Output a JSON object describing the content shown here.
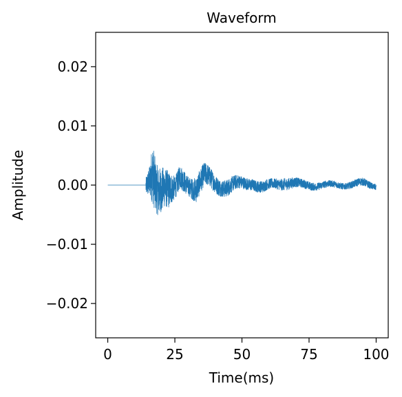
{
  "chart_data": {
    "type": "line",
    "title": "Waveform",
    "xlabel": "Time(ms)",
    "ylabel": "Amplitude",
    "xlim": [
      -4.5,
      104.5
    ],
    "ylim": [
      -0.0258,
      0.0258
    ],
    "xticks": [
      {
        "value": 0,
        "label": "0"
      },
      {
        "value": 25,
        "label": "25"
      },
      {
        "value": 50,
        "label": "50"
      },
      {
        "value": 75,
        "label": "75"
      },
      {
        "value": 100,
        "label": "100"
      }
    ],
    "yticks": [
      {
        "value": 0.02,
        "label": "0.02"
      },
      {
        "value": 0.01,
        "label": "0.01"
      },
      {
        "value": 0.0,
        "label": "0.00"
      },
      {
        "value": -0.01,
        "label": "−0.01"
      },
      {
        "value": -0.02,
        "label": "−0.02"
      }
    ],
    "grid": false,
    "series": [
      {
        "color": "#1f77b4",
        "onset_ms": 14.2,
        "x_start": 0,
        "x_end": 100,
        "envelope": [
          {
            "t": 14.2,
            "max": 0.0012,
            "min": -0.003
          },
          {
            "t": 15.5,
            "max": 0.003,
            "min": -0.004
          },
          {
            "t": 16.8,
            "max": 0.0084,
            "min": -0.0055
          },
          {
            "t": 18.0,
            "max": 0.006,
            "min": -0.0052
          },
          {
            "t": 19.5,
            "max": 0.0062,
            "min": -0.0048
          },
          {
            "t": 21.0,
            "max": 0.0058,
            "min": -0.0035
          },
          {
            "t": 23.0,
            "max": 0.003,
            "min": -0.005
          },
          {
            "t": 25.0,
            "max": 0.0012,
            "min": -0.004
          },
          {
            "t": 27.0,
            "max": 0.0035,
            "min": -0.002
          },
          {
            "t": 30.0,
            "max": 0.0025,
            "min": -0.0018
          },
          {
            "t": 33.0,
            "max": 0.0028,
            "min": -0.003
          },
          {
            "t": 36.0,
            "max": 0.0038,
            "min": -0.0015
          },
          {
            "t": 40.0,
            "max": 0.0022,
            "min": -0.0018
          },
          {
            "t": 45.0,
            "max": 0.0018,
            "min": -0.002
          },
          {
            "t": 50.0,
            "max": 0.0015,
            "min": -0.0013
          },
          {
            "t": 54.0,
            "max": 0.0018,
            "min": -0.0008
          },
          {
            "t": 58.0,
            "max": 0.0008,
            "min": -0.0018
          },
          {
            "t": 62.0,
            "max": 0.0012,
            "min": -0.001
          },
          {
            "t": 66.0,
            "max": 0.002,
            "min": -0.0008
          },
          {
            "t": 72.0,
            "max": 0.001,
            "min": -0.001
          },
          {
            "t": 80.0,
            "max": 0.0008,
            "min": -0.0008
          },
          {
            "t": 88.0,
            "max": 0.0007,
            "min": -0.0007
          },
          {
            "t": 95.0,
            "max": 0.0012,
            "min": -0.0006
          },
          {
            "t": 100.0,
            "max": 0.0005,
            "min": -0.0008
          }
        ]
      }
    ]
  }
}
